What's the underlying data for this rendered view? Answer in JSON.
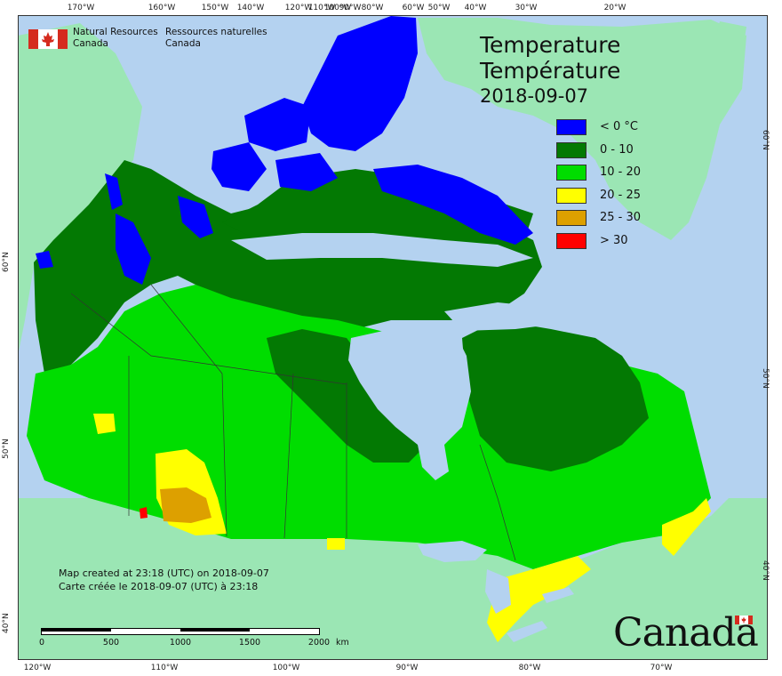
{
  "map": {
    "title_en": "Temperature",
    "title_fr": "Température",
    "date": "2018-09-07",
    "agency_en": [
      "Natural Resources",
      "Canada"
    ],
    "agency_fr": [
      "Ressources naturelles",
      "Canada"
    ],
    "wordmark": "Canada",
    "credit_en": "Map created at 23:18 (UTC) on 2018-09-07",
    "credit_fr": "Carte créée le 2018-09-07 (UTC) à 23:18",
    "legend": [
      {
        "label": "< 0 °C",
        "color": "#0000ff"
      },
      {
        "label": "0 - 10",
        "color": "#037903"
      },
      {
        "label": "10 - 20",
        "color": "#00dd00"
      },
      {
        "label": "20 - 25",
        "color": "#ffff00"
      },
      {
        "label": "25 - 30",
        "color": "#dda000"
      },
      {
        "label": "> 30",
        "color": "#ff0000"
      }
    ],
    "scale": {
      "labels": [
        "0",
        "500",
        "1000",
        "1500",
        "2000"
      ],
      "unit": "km"
    },
    "ticks": {
      "top": [
        "170°W",
        "160°W",
        "150°W",
        "140°W",
        "120°W",
        "110°W",
        "100°W",
        "90°W",
        "80°W",
        "60°W",
        "50°W",
        "40°W",
        "30°W",
        "20°W"
      ],
      "bottom": [
        "120°W",
        "110°W",
        "100°W",
        "90°W",
        "80°W",
        "70°W"
      ],
      "left": [
        "60°N",
        "50°N",
        "40°N"
      ],
      "right": [
        "60°N",
        "50°N",
        "40°N"
      ]
    },
    "colors": {
      "ocean": "#b4d2f0",
      "foreign_land": "#9be6b4",
      "water": "#b4d2f0"
    }
  }
}
